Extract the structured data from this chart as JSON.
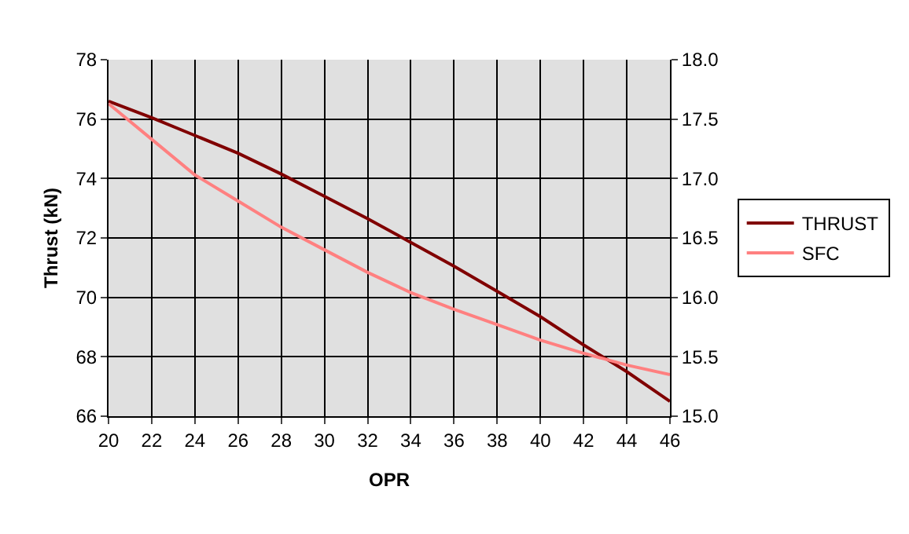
{
  "chart_data": {
    "type": "line",
    "xlabel": "OPR",
    "ylabel": "Thrust (kN)",
    "x": [
      20,
      22,
      24,
      26,
      28,
      30,
      32,
      34,
      36,
      38,
      40,
      42,
      44,
      46
    ],
    "series": [
      {
        "name": "THRUST",
        "color": "#800000",
        "values": [
          76.6,
          76.05,
          75.45,
          74.85,
          74.15,
          73.4,
          72.65,
          71.85,
          71.05,
          70.2,
          69.35,
          68.4,
          67.5,
          66.5
        ]
      },
      {
        "name": "SFC",
        "color": "#ff8080",
        "axis": "y2",
        "values": [
          17.63,
          17.33,
          17.03,
          16.81,
          16.59,
          16.4,
          16.21,
          16.04,
          15.9,
          15.77,
          15.64,
          15.53,
          15.43,
          15.35
        ]
      }
    ],
    "xlim": [
      20,
      46
    ],
    "xticks": [
      20,
      22,
      24,
      26,
      28,
      30,
      32,
      34,
      36,
      38,
      40,
      42,
      44,
      46
    ],
    "ylim": [
      66,
      78
    ],
    "yticks": [
      66,
      68,
      70,
      72,
      74,
      76,
      78
    ],
    "y2lim": [
      15.0,
      18.0
    ],
    "y2ticks": [
      {
        "value": 15.0,
        "label": "15.0"
      },
      {
        "value": 15.5,
        "label": "15.5"
      },
      {
        "value": 16.0,
        "label": "16.0"
      },
      {
        "value": 16.5,
        "label": "16.5"
      },
      {
        "value": 17.0,
        "label": "17.0"
      },
      {
        "value": 17.5,
        "label": "17.5"
      },
      {
        "value": 18.0,
        "label": "18.0"
      }
    ],
    "grid": true,
    "legend": "right",
    "marker": "none",
    "line_style": "solid"
  }
}
